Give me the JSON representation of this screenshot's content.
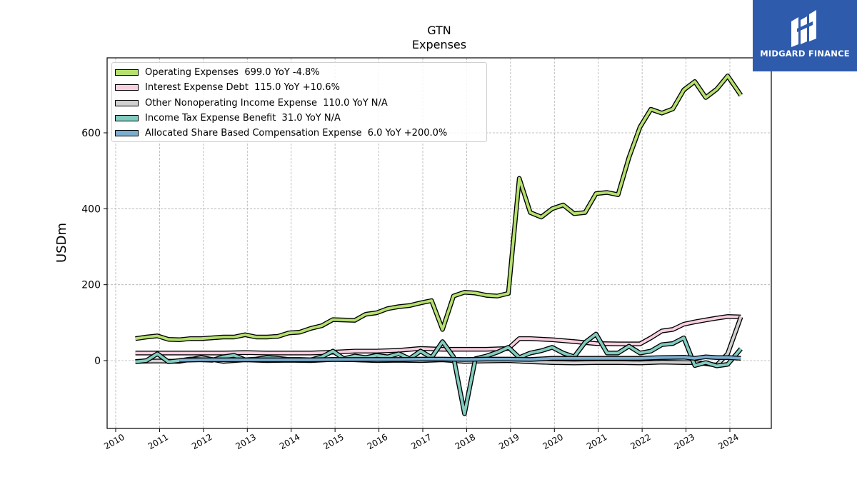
{
  "branding": {
    "logo_text": "MIDGARD FINANCE",
    "logo_color": "#2f5bad"
  },
  "chart_data": {
    "type": "line",
    "title": "GTN",
    "subtitle": "Expenses",
    "ylabel": "USDm",
    "xlabel": "",
    "xlim": [
      2009.9,
      2024.9
    ],
    "ylim": [
      -180,
      800
    ],
    "yticks": [
      0,
      200,
      400,
      600
    ],
    "xticks": [
      2010,
      2011,
      2012,
      2013,
      2014,
      2015,
      2016,
      2017,
      2018,
      2019,
      2020,
      2021,
      2022,
      2023,
      2024
    ],
    "grid": true,
    "legend_position": "top-left",
    "series": [
      {
        "name": "Operating Expenses",
        "legend_label": "Operating Expenses  699.0 YoY -4.8%",
        "color": "#b5e06e",
        "x": [
          2010.45,
          2010.7,
          2010.95,
          2011.2,
          2011.45,
          2011.7,
          2011.95,
          2012.2,
          2012.45,
          2012.7,
          2012.95,
          2013.2,
          2013.45,
          2013.7,
          2013.95,
          2014.2,
          2014.45,
          2014.7,
          2014.95,
          2015.2,
          2015.45,
          2015.7,
          2015.95,
          2016.2,
          2016.45,
          2016.7,
          2016.95,
          2017.2,
          2017.45,
          2017.7,
          2017.95,
          2018.2,
          2018.45,
          2018.7,
          2018.95,
          2019.2,
          2019.45,
          2019.7,
          2019.95,
          2020.2,
          2020.45,
          2020.7,
          2020.95,
          2021.2,
          2021.45,
          2021.7,
          2021.95,
          2022.2,
          2022.45,
          2022.7,
          2022.95,
          2023.2,
          2023.45,
          2023.7,
          2023.95,
          2024.25
        ],
        "values": [
          58,
          62,
          65,
          56,
          55,
          58,
          58,
          60,
          62,
          62,
          68,
          62,
          62,
          64,
          73,
          75,
          85,
          92,
          108,
          107,
          106,
          122,
          126,
          137,
          142,
          145,
          152,
          158,
          82,
          170,
          180,
          178,
          172,
          170,
          177,
          480,
          390,
          378,
          400,
          410,
          387,
          390,
          440,
          443,
          437,
          535,
          615,
          662,
          652,
          663,
          713,
          735,
          693,
          715,
          750,
          699
        ]
      },
      {
        "name": "Interest Expense Debt",
        "legend_label": "Interest Expense Debt  115.0 YoY +10.6%",
        "color": "#f7cfe0",
        "x": [
          2010.45,
          2010.95,
          2011.45,
          2011.95,
          2012.45,
          2012.95,
          2013.45,
          2013.95,
          2014.45,
          2014.95,
          2015.45,
          2015.95,
          2016.45,
          2016.95,
          2017.45,
          2017.95,
          2018.45,
          2018.95,
          2019.2,
          2019.45,
          2019.95,
          2020.45,
          2020.95,
          2021.45,
          2021.95,
          2022.2,
          2022.45,
          2022.7,
          2022.95,
          2023.2,
          2023.45,
          2023.7,
          2023.95,
          2024.25
        ],
        "values": [
          20,
          20,
          20,
          20,
          20,
          21,
          20,
          20,
          20,
          22,
          25,
          25,
          27,
          32,
          30,
          30,
          30,
          32,
          58,
          58,
          55,
          50,
          45,
          44,
          44,
          60,
          78,
          82,
          96,
          102,
          107,
          112,
          116,
          115
        ]
      },
      {
        "name": "Other Nonoperating Income Expense",
        "legend_label": "Other Nonoperating Income Expense  110.0 YoY N/A",
        "color": "#d0d0d0",
        "x": [
          2010.45,
          2010.95,
          2011.45,
          2011.95,
          2012.45,
          2012.95,
          2013.45,
          2013.95,
          2014.45,
          2014.95,
          2015.45,
          2015.95,
          2016.45,
          2016.95,
          2017.45,
          2017.95,
          2018.45,
          2018.95,
          2019.45,
          2019.95,
          2020.45,
          2020.95,
          2021.45,
          2021.95,
          2022.45,
          2022.95,
          2023.2,
          2023.45,
          2023.7,
          2023.95,
          2024.25
        ],
        "values": [
          -2,
          -1,
          -2,
          8,
          -2,
          2,
          0,
          1,
          0,
          3,
          2,
          0,
          1,
          0,
          2,
          -2,
          -1,
          0,
          -3,
          -5,
          -6,
          -5,
          -5,
          -6,
          -4,
          -5,
          -5,
          -8,
          -12,
          18,
          115
        ]
      },
      {
        "name": "Income Tax Expense Benefit",
        "legend_label": "Income Tax Expense Benefit  31.0 YoY N/A",
        "color": "#82cbbf",
        "x": [
          2010.45,
          2010.7,
          2010.95,
          2011.2,
          2011.45,
          2011.7,
          2011.95,
          2012.2,
          2012.45,
          2012.7,
          2012.95,
          2013.2,
          2013.45,
          2013.7,
          2013.95,
          2014.2,
          2014.45,
          2014.7,
          2014.95,
          2015.2,
          2015.45,
          2015.7,
          2015.95,
          2016.2,
          2016.45,
          2016.7,
          2016.95,
          2017.2,
          2017.45,
          2017.7,
          2017.95,
          2018.2,
          2018.45,
          2018.7,
          2018.95,
          2019.2,
          2019.45,
          2019.7,
          2019.95,
          2020.2,
          2020.45,
          2020.7,
          2020.95,
          2021.2,
          2021.45,
          2021.7,
          2021.95,
          2022.2,
          2022.45,
          2022.7,
          2022.95,
          2023.2,
          2023.45,
          2023.7,
          2023.95,
          2024.25
        ],
        "values": [
          -3,
          0,
          18,
          -3,
          0,
          4,
          2,
          1,
          10,
          14,
          2,
          4,
          8,
          6,
          3,
          3,
          2,
          10,
          25,
          5,
          12,
          8,
          14,
          10,
          18,
          5,
          25,
          8,
          50,
          10,
          -140,
          5,
          12,
          22,
          35,
          8,
          20,
          26,
          35,
          20,
          10,
          48,
          70,
          20,
          20,
          38,
          20,
          25,
          42,
          45,
          60,
          -13,
          -5,
          -14,
          -10,
          31
        ]
      },
      {
        "name": "Allocated Share Based Compensation Expense",
        "legend_label": "Allocated Share Based Compensation Expense  6.0 YoY +200.0%",
        "color": "#7bafd0",
        "x": [
          2011.45,
          2011.95,
          2012.45,
          2012.95,
          2013.45,
          2013.95,
          2014.45,
          2014.95,
          2015.45,
          2015.95,
          2016.45,
          2016.95,
          2017.45,
          2017.95,
          2018.45,
          2018.95,
          2019.45,
          2019.95,
          2020.45,
          2020.95,
          2021.45,
          2021.95,
          2022.45,
          2022.95,
          2023.2,
          2023.45,
          2023.7,
          2023.95,
          2024.25
        ],
        "values": [
          1,
          2,
          2,
          2,
          2,
          2,
          2,
          3,
          3,
          3,
          3,
          4,
          4,
          3,
          4,
          4,
          3,
          6,
          6,
          6,
          6,
          6,
          8,
          9,
          6,
          10,
          8,
          8,
          6
        ]
      }
    ]
  }
}
